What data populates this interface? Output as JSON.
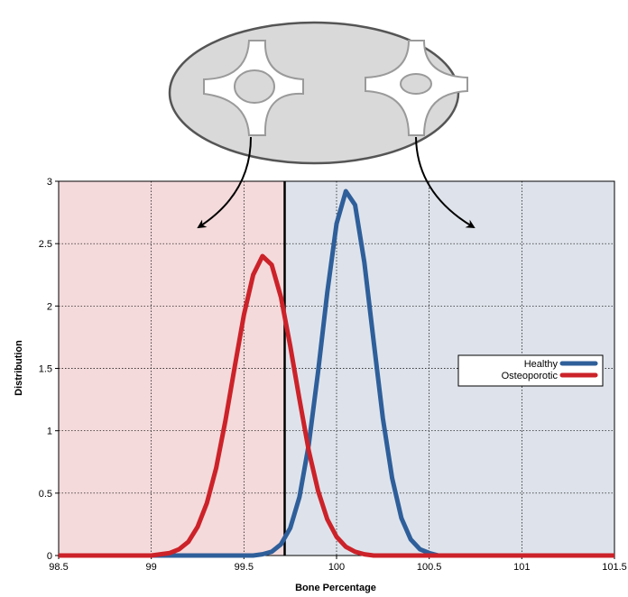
{
  "chart_data": {
    "type": "line",
    "xlabel": "Bone Percentage",
    "ylabel": "Distribution",
    "xlim": [
      98.5,
      101.5
    ],
    "ylim": [
      0,
      3
    ],
    "xticks": [
      98.5,
      99,
      99.5,
      100,
      100.5,
      101,
      101.5
    ],
    "yticks": [
      0,
      0.5,
      1,
      1.5,
      2,
      2.5,
      3
    ],
    "grid": true,
    "legend": "right",
    "threshold": 99.72,
    "regions": [
      {
        "from": 98.5,
        "to": 99.72,
        "color": "#f4dadb"
      },
      {
        "from": 99.72,
        "to": 101.5,
        "color": "#dee3eb"
      }
    ],
    "series": [
      {
        "name": "Healthy",
        "color": "#2f5f9a",
        "x": [
          98.5,
          99.55,
          99.6,
          99.65,
          99.7,
          99.75,
          99.8,
          99.85,
          99.9,
          99.95,
          100,
          100.05,
          100.1,
          100.15,
          100.2,
          100.25,
          100.3,
          100.35,
          100.4,
          100.45,
          100.5,
          100.55,
          101.5
        ],
        "values": [
          0,
          0,
          0.01,
          0.03,
          0.09,
          0.22,
          0.47,
          0.89,
          1.47,
          2.11,
          2.66,
          2.92,
          2.81,
          2.35,
          1.72,
          1.1,
          0.62,
          0.3,
          0.13,
          0.05,
          0.02,
          0,
          0
        ]
      },
      {
        "name": "Osteoporotic",
        "color": "#cc2229",
        "x": [
          98.5,
          99,
          99.05,
          99.1,
          99.15,
          99.2,
          99.25,
          99.3,
          99.35,
          99.4,
          99.45,
          99.5,
          99.55,
          99.6,
          99.65,
          99.7,
          99.75,
          99.8,
          99.85,
          99.9,
          99.95,
          100,
          100.05,
          100.1,
          100.15,
          100.2,
          101.5
        ],
        "values": [
          0,
          0,
          0.01,
          0.02,
          0.05,
          0.11,
          0.23,
          0.42,
          0.7,
          1.08,
          1.51,
          1.93,
          2.25,
          2.4,
          2.33,
          2.07,
          1.68,
          1.25,
          0.84,
          0.52,
          0.29,
          0.15,
          0.07,
          0.03,
          0.01,
          0,
          0
        ]
      }
    ]
  }
}
